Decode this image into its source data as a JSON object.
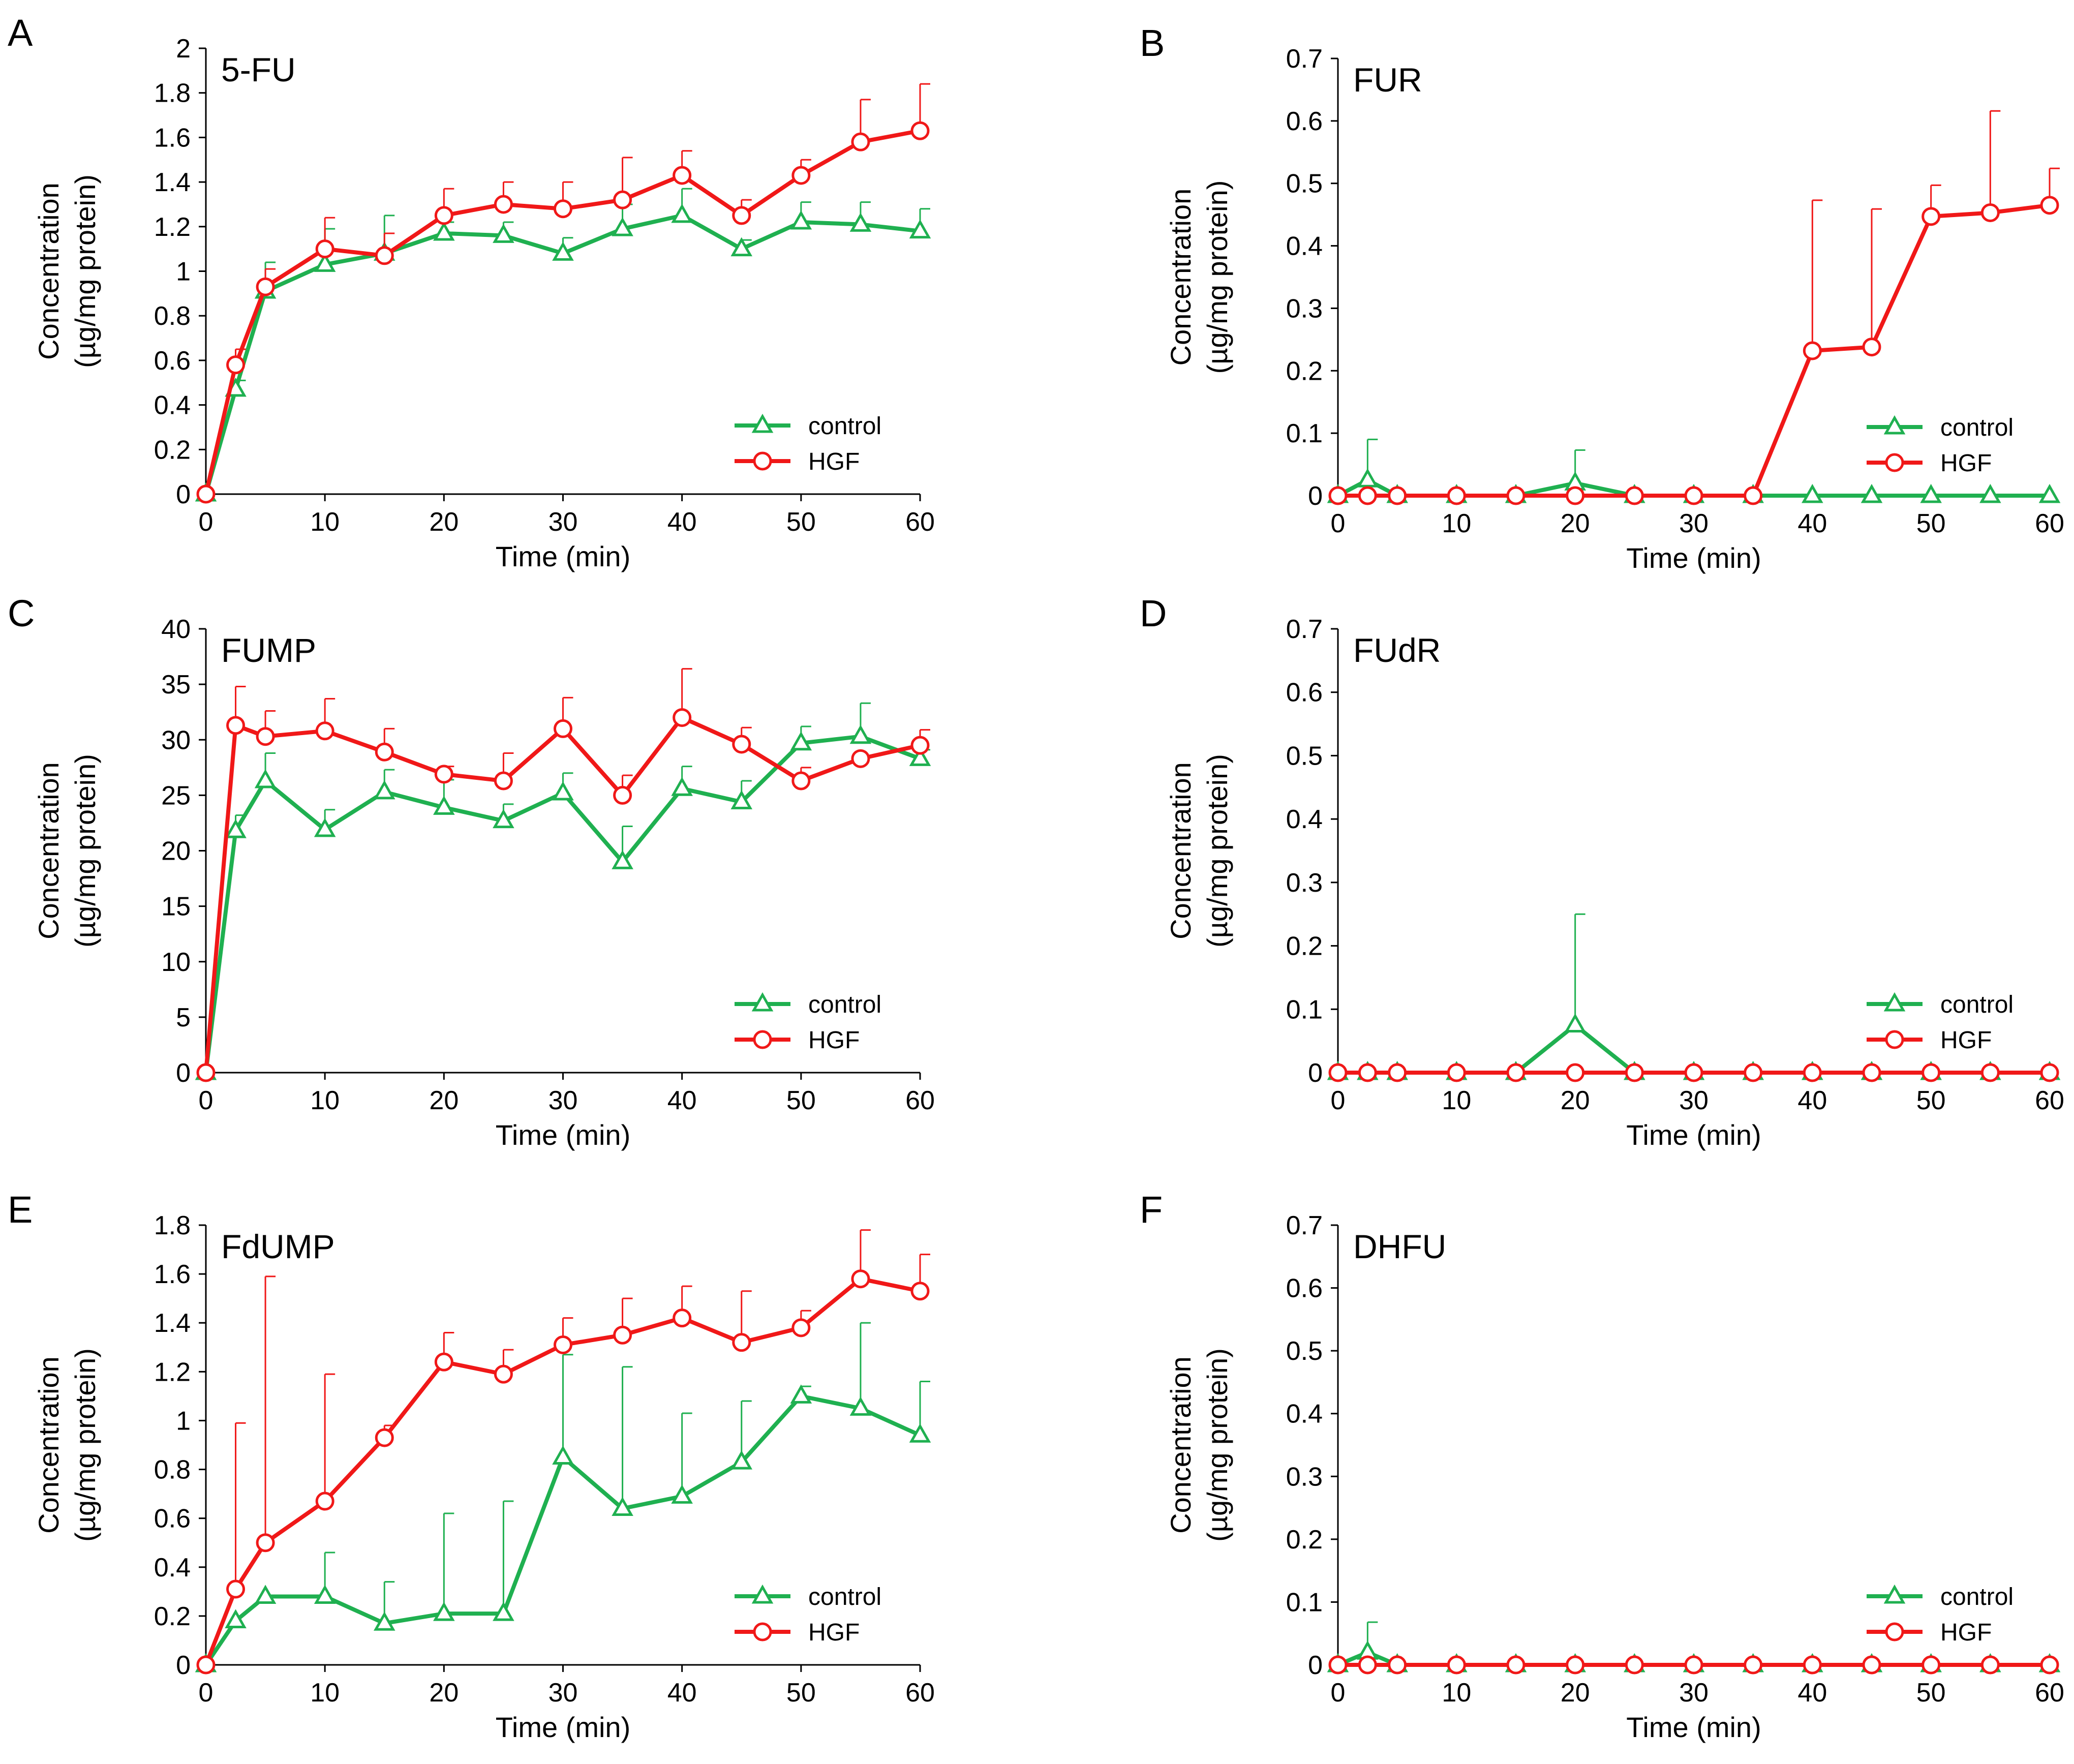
{
  "colors": {
    "control": "#1fb050",
    "hgf": "#f01818",
    "axis": "#000000"
  },
  "chart_data": [
    {
      "panel": "A",
      "type": "line",
      "title": "5-FU",
      "xlabel": "Time (min)",
      "ylabel": [
        "Concentration",
        "(µg/mg protein)"
      ],
      "xlim": [
        0,
        60
      ],
      "ylim": [
        0,
        2
      ],
      "xticks": [
        0,
        10,
        20,
        30,
        40,
        50,
        60
      ],
      "yticks": [
        0,
        0.2,
        0.4,
        0.6,
        0.8,
        1,
        1.2,
        1.4,
        1.6,
        1.8,
        2
      ],
      "ytick_labels": [
        "0",
        "0.2",
        "0.4",
        "0.6",
        "0.8",
        "1",
        "1.2",
        "1.4",
        "1.6",
        "1.8",
        "2"
      ],
      "x": [
        0,
        2.5,
        5,
        10,
        15,
        20,
        25,
        30,
        35,
        40,
        45,
        50,
        55,
        60
      ],
      "series": [
        {
          "name": "control",
          "marker": "triangle",
          "values": [
            0,
            0.47,
            0.91,
            1.03,
            1.08,
            1.17,
            1.16,
            1.08,
            1.19,
            1.25,
            1.1,
            1.22,
            1.21,
            1.18
          ],
          "errors": [
            0,
            0.04,
            0.13,
            0.16,
            0.17,
            0.05,
            0.06,
            0.07,
            0.11,
            0.12,
            0.04,
            0.09,
            0.1,
            0.1
          ]
        },
        {
          "name": "HGF",
          "marker": "circle",
          "values": [
            0,
            0.58,
            0.93,
            1.1,
            1.07,
            1.25,
            1.3,
            1.28,
            1.32,
            1.43,
            1.25,
            1.43,
            1.58,
            1.63
          ],
          "errors": [
            0,
            0.07,
            0.08,
            0.14,
            0.1,
            0.12,
            0.1,
            0.12,
            0.19,
            0.11,
            0.07,
            0.07,
            0.19,
            0.21
          ]
        }
      ],
      "legend": [
        "control",
        "HGF"
      ]
    },
    {
      "panel": "B",
      "type": "line",
      "title": "FUR",
      "xlabel": "Time (min)",
      "ylabel": [
        "Concentration",
        "(µg/mg protein)"
      ],
      "xlim": [
        0,
        60
      ],
      "ylim": [
        0,
        0.7
      ],
      "xticks": [
        0,
        10,
        20,
        30,
        40,
        50,
        60
      ],
      "yticks": [
        0,
        0.1,
        0.2,
        0.3,
        0.4,
        0.5,
        0.6,
        0.7
      ],
      "ytick_labels": [
        "0",
        "0.1",
        "0.2",
        "0.3",
        "0.4",
        "0.5",
        "0.6",
        "0.7"
      ],
      "x": [
        0,
        2.5,
        5,
        10,
        15,
        20,
        25,
        30,
        35,
        40,
        45,
        50,
        55,
        60
      ],
      "series": [
        {
          "name": "control",
          "marker": "triangle",
          "values": [
            0,
            0.025,
            0,
            0,
            0,
            0.02,
            0,
            0,
            0,
            0,
            0,
            0,
            0,
            0
          ],
          "errors": [
            0,
            0.065,
            0,
            0,
            0,
            0.053,
            0,
            0,
            0,
            0,
            0,
            0,
            0,
            0
          ]
        },
        {
          "name": "HGF",
          "marker": "circle",
          "values": [
            0,
            0,
            0,
            0,
            0,
            0,
            0,
            0,
            0,
            0.232,
            0.238,
            0.447,
            0.453,
            0.465
          ],
          "errors": [
            0,
            0,
            0,
            0,
            0,
            0,
            0,
            0,
            0,
            0.241,
            0.221,
            0.05,
            0.163,
            0.059
          ]
        }
      ],
      "legend": [
        "control",
        "HGF"
      ]
    },
    {
      "panel": "C",
      "type": "line",
      "title": "FUMP",
      "xlabel": "Time (min)",
      "ylabel": [
        "Concentration",
        "(µg/mg protein)"
      ],
      "xlim": [
        0,
        60
      ],
      "ylim": [
        0,
        40
      ],
      "xticks": [
        0,
        10,
        20,
        30,
        40,
        50,
        60
      ],
      "yticks": [
        0,
        5,
        10,
        15,
        20,
        25,
        30,
        35,
        40
      ],
      "ytick_labels": [
        "0",
        "5",
        "10",
        "15",
        "20",
        "25",
        "30",
        "35",
        "40"
      ],
      "x": [
        0,
        2.5,
        5,
        10,
        15,
        20,
        25,
        30,
        35,
        40,
        45,
        50,
        55,
        60
      ],
      "series": [
        {
          "name": "control",
          "marker": "triangle",
          "values": [
            0,
            21.8,
            26.3,
            21.9,
            25.3,
            23.9,
            22.7,
            25.2,
            19.0,
            25.6,
            24.4,
            29.7,
            30.3,
            28.3
          ],
          "errors": [
            0,
            1.4,
            2.5,
            1.8,
            2.0,
            2.5,
            1.5,
            1.8,
            3.2,
            2.0,
            1.9,
            1.5,
            3.0,
            0.8
          ]
        },
        {
          "name": "HGF",
          "marker": "circle",
          "values": [
            0,
            31.3,
            30.3,
            30.8,
            28.9,
            26.9,
            26.3,
            31.0,
            25.0,
            32.0,
            29.6,
            26.3,
            28.3,
            29.5
          ],
          "errors": [
            0,
            3.5,
            2.3,
            2.9,
            2.1,
            0.7,
            2.5,
            2.8,
            1.8,
            4.4,
            1.5,
            1.2,
            0,
            1.4
          ]
        }
      ],
      "legend": [
        "control",
        "HGF"
      ]
    },
    {
      "panel": "D",
      "type": "line",
      "title": "FUdR",
      "xlabel": "Time (min)",
      "ylabel": [
        "Concentration",
        "(µg/mg protein)"
      ],
      "xlim": [
        0,
        60
      ],
      "ylim": [
        0,
        0.7
      ],
      "xticks": [
        0,
        10,
        20,
        30,
        40,
        50,
        60
      ],
      "yticks": [
        0,
        0.1,
        0.2,
        0.3,
        0.4,
        0.5,
        0.6,
        0.7
      ],
      "ytick_labels": [
        "0",
        "0.1",
        "0.2",
        "0.3",
        "0.4",
        "0.5",
        "0.6",
        "0.7"
      ],
      "x": [
        0,
        2.5,
        5,
        10,
        15,
        20,
        25,
        30,
        35,
        40,
        45,
        50,
        55,
        60
      ],
      "series": [
        {
          "name": "control",
          "marker": "triangle",
          "values": [
            0,
            0,
            0,
            0,
            0,
            0.075,
            0,
            0,
            0,
            0,
            0,
            0,
            0,
            0
          ],
          "errors": [
            0,
            0,
            0,
            0,
            0,
            0.175,
            0,
            0,
            0,
            0,
            0,
            0,
            0,
            0
          ]
        },
        {
          "name": "HGF",
          "marker": "circle",
          "values": [
            0,
            0,
            0,
            0,
            0,
            0,
            0,
            0,
            0,
            0,
            0,
            0,
            0,
            0
          ],
          "errors": [
            0,
            0,
            0,
            0,
            0,
            0,
            0,
            0,
            0,
            0,
            0,
            0,
            0,
            0
          ]
        }
      ],
      "legend": [
        "control",
        "HGF"
      ]
    },
    {
      "panel": "E",
      "type": "line",
      "title": "FdUMP",
      "xlabel": "Time (min)",
      "ylabel": [
        "Concentration",
        "(µg/mg protein)"
      ],
      "xlim": [
        0,
        60
      ],
      "ylim": [
        0,
        1.8
      ],
      "xticks": [
        0,
        10,
        20,
        30,
        40,
        50,
        60
      ],
      "yticks": [
        0,
        0.2,
        0.4,
        0.6,
        0.8,
        1,
        1.2,
        1.4,
        1.6,
        1.8
      ],
      "ytick_labels": [
        "0",
        "0.2",
        "0.4",
        "0.6",
        "0.8",
        "1",
        "1.2",
        "1.4",
        "1.6",
        "1.8"
      ],
      "x": [
        0,
        2.5,
        5,
        10,
        15,
        20,
        25,
        30,
        35,
        40,
        45,
        50,
        55,
        60
      ],
      "series": [
        {
          "name": "control",
          "marker": "triangle",
          "values": [
            0,
            0.18,
            0.28,
            0.28,
            0.17,
            0.21,
            0.21,
            0.85,
            0.64,
            0.69,
            0.83,
            1.1,
            1.05,
            0.94
          ],
          "errors": [
            0,
            0,
            0,
            0.18,
            0.17,
            0.41,
            0.46,
            0.42,
            0.58,
            0.34,
            0.25,
            0.04,
            0.35,
            0.22
          ]
        },
        {
          "name": "HGF",
          "marker": "circle",
          "values": [
            0,
            0.31,
            0.5,
            0.67,
            0.93,
            1.24,
            1.19,
            1.31,
            1.35,
            1.42,
            1.32,
            1.38,
            1.58,
            1.53
          ],
          "errors": [
            0,
            0.68,
            1.09,
            0.52,
            0.05,
            0.12,
            0.1,
            0.11,
            0.15,
            0.13,
            0.21,
            0.07,
            0.2,
            0.15
          ]
        }
      ],
      "legend": [
        "control",
        "HGF"
      ]
    },
    {
      "panel": "F",
      "type": "line",
      "title": "DHFU",
      "xlabel": "Time (min)",
      "ylabel": [
        "Concentration",
        "(µg/mg protein)"
      ],
      "xlim": [
        0,
        60
      ],
      "ylim": [
        0,
        0.7
      ],
      "xticks": [
        0,
        10,
        20,
        30,
        40,
        50,
        60
      ],
      "yticks": [
        0,
        0.1,
        0.2,
        0.3,
        0.4,
        0.5,
        0.6,
        0.7
      ],
      "ytick_labels": [
        "0",
        "0.1",
        "0.2",
        "0.3",
        "0.4",
        "0.5",
        "0.6",
        "0.7"
      ],
      "x": [
        0,
        2.5,
        5,
        10,
        15,
        20,
        25,
        30,
        35,
        40,
        45,
        50,
        55,
        60
      ],
      "series": [
        {
          "name": "control",
          "marker": "triangle",
          "values": [
            0,
            0.02,
            0,
            0,
            0,
            0,
            0,
            0,
            0,
            0,
            0,
            0,
            0,
            0
          ],
          "errors": [
            0,
            0.048,
            0,
            0,
            0,
            0,
            0,
            0,
            0,
            0,
            0,
            0,
            0,
            0
          ]
        },
        {
          "name": "HGF",
          "marker": "circle",
          "values": [
            0,
            0,
            0,
            0,
            0,
            0,
            0,
            0,
            0,
            0,
            0,
            0,
            0,
            0
          ],
          "errors": [
            0,
            0,
            0,
            0,
            0,
            0,
            0,
            0,
            0,
            0,
            0,
            0,
            0,
            0
          ]
        }
      ],
      "legend": [
        "control",
        "HGF"
      ]
    }
  ]
}
